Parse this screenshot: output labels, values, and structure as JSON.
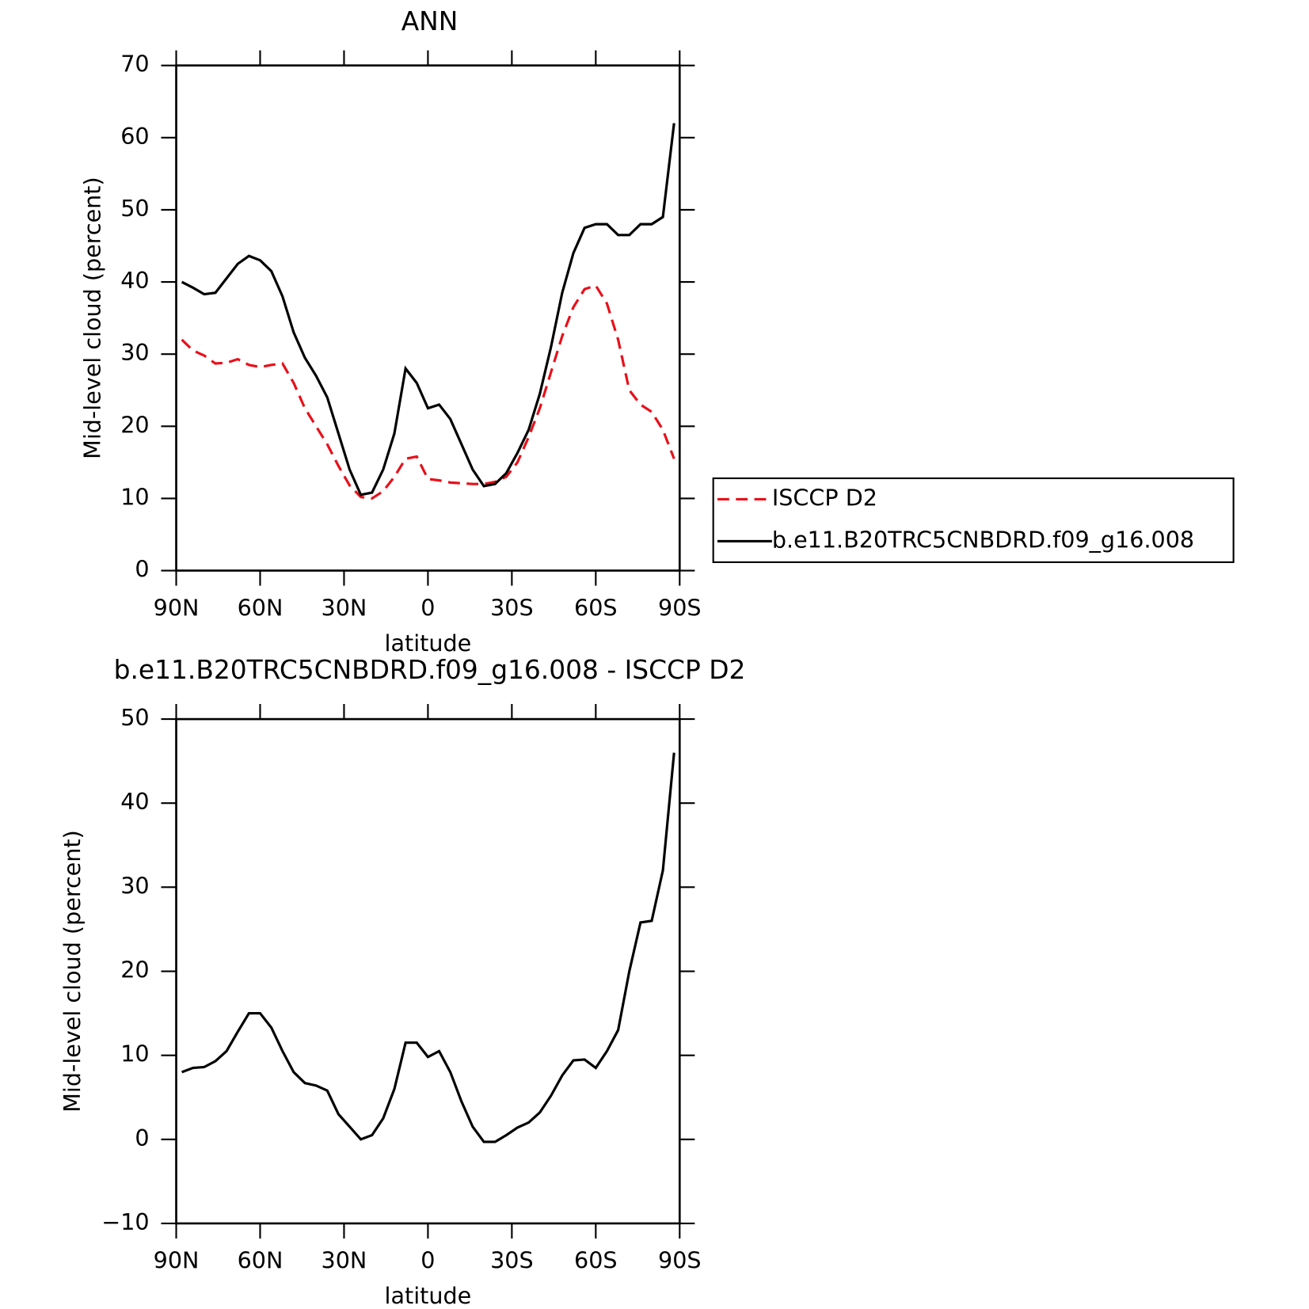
{
  "chart_data": [
    {
      "type": "line",
      "title": "ANN",
      "xlabel": "latitude",
      "ylabel": "Mid-level cloud (percent)",
      "x": [
        88,
        84,
        80,
        76,
        72,
        68,
        64,
        60,
        56,
        52,
        48,
        44,
        40,
        36,
        32,
        28,
        24,
        20,
        16,
        12,
        8,
        4,
        0,
        -4,
        -8,
        -12,
        -16,
        -20,
        -24,
        -28,
        -32,
        -36,
        -40,
        -44,
        -48,
        -52,
        -56,
        -60,
        -64,
        -68,
        -72,
        -76,
        -80,
        -84,
        -88
      ],
      "series": [
        {
          "name": "ISCCP D2",
          "color": "#e8101a",
          "line_style": "dashed",
          "values": [
            32,
            30.5,
            29.8,
            28.7,
            28.8,
            29.3,
            28.5,
            28.2,
            28.5,
            28.7,
            26,
            22.5,
            20,
            17.5,
            14.5,
            11.8,
            10.2,
            10,
            11,
            13,
            15.5,
            15.8,
            12.7,
            12.5,
            12.2,
            12.1,
            12,
            12,
            12.3,
            13,
            15,
            18.5,
            22.5,
            27.5,
            32.5,
            36.5,
            39,
            39.5,
            37,
            32,
            25,
            23,
            22,
            19.5,
            15.5
          ]
        },
        {
          "name": "b.e11.B20TRC5CNBDRD.f09_g16.008",
          "color": "#000000",
          "line_style": "solid",
          "values": [
            40,
            39.2,
            38.3,
            38.5,
            40.5,
            42.5,
            43.6,
            43,
            41.5,
            38,
            33,
            29.5,
            27,
            24,
            19,
            14,
            10.5,
            10.8,
            14,
            19,
            28,
            26,
            22.5,
            23,
            21,
            17.5,
            14,
            11.7,
            12,
            13.5,
            16.3,
            19.5,
            24.5,
            31,
            38.5,
            44,
            47.5,
            48,
            48,
            46.5,
            46.5,
            48,
            48,
            49,
            62
          ]
        }
      ],
      "xlim": [
        90,
        -90
      ],
      "xticks": [
        {
          "value": 90,
          "label": "90N"
        },
        {
          "value": 60,
          "label": "60N"
        },
        {
          "value": 30,
          "label": "30N"
        },
        0,
        {
          "value": -30,
          "label": "30S"
        },
        {
          "value": -60,
          "label": "60S"
        },
        {
          "value": -90,
          "label": "90S"
        }
      ],
      "ylim": [
        0,
        70
      ],
      "yticks": [
        0,
        10,
        20,
        30,
        40,
        50,
        60,
        70
      ],
      "legend": "right"
    },
    {
      "type": "line",
      "title": "b.e11.B20TRC5CNBDRD.f09_g16.008 - ISCCP D2",
      "xlabel": "latitude",
      "ylabel": "Mid-level cloud (percent)",
      "x": [
        88,
        84,
        80,
        76,
        72,
        68,
        64,
        60,
        56,
        52,
        48,
        44,
        40,
        36,
        32,
        28,
        24,
        20,
        16,
        12,
        8,
        4,
        0,
        -4,
        -8,
        -12,
        -16,
        -20,
        -24,
        -28,
        -32,
        -36,
        -40,
        -44,
        -48,
        -52,
        -56,
        -60,
        -64,
        -68,
        -72,
        -76,
        -80,
        -84,
        -88
      ],
      "color": "#000000",
      "values": [
        8,
        8.5,
        8.6,
        9.3,
        10.5,
        12.8,
        15,
        15,
        13.3,
        10.5,
        8,
        6.7,
        6.4,
        5.8,
        3,
        1.5,
        0,
        0.5,
        2.5,
        6,
        11.5,
        11.5,
        9.8,
        10.5,
        8,
        4.5,
        1.5,
        -0.3,
        -0.3,
        0.5,
        1.4,
        2,
        3.2,
        5.2,
        7.6,
        9.4,
        9.5,
        8.5,
        10.5,
        13,
        20,
        25.8,
        26,
        32,
        46
      ],
      "xlim": [
        90,
        -90
      ],
      "xticks": [
        {
          "value": 90,
          "label": "90N"
        },
        {
          "value": 60,
          "label": "60N"
        },
        {
          "value": 30,
          "label": "30N"
        },
        0,
        {
          "value": -30,
          "label": "30S"
        },
        {
          "value": -60,
          "label": "60S"
        },
        {
          "value": -90,
          "label": "90S"
        }
      ],
      "ylim": [
        -10,
        50
      ],
      "yticks": [
        {
          "value": -10,
          "label": "−10"
        },
        0,
        10,
        20,
        30,
        40,
        50
      ]
    }
  ]
}
